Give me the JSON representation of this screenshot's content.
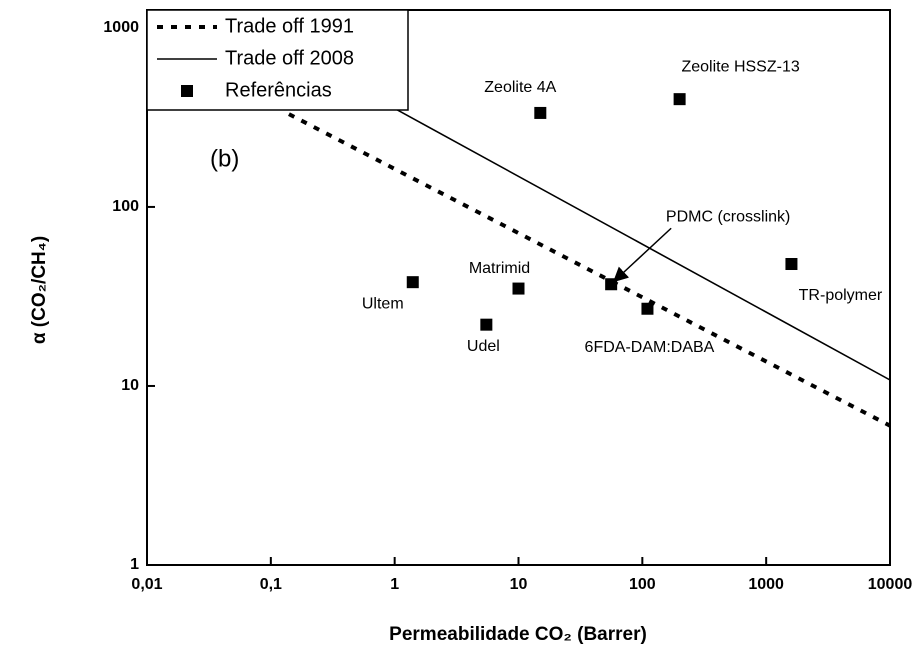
{
  "chart_data": {
    "type": "scatter",
    "xlabel": "Permeabilidade CO₂ (Barrer)",
    "ylabel": "α (CO₂/CH₄)",
    "xscale": "log",
    "yscale": "log",
    "xlim": [
      0.01,
      10000
    ],
    "ylim": [
      1,
      1259
    ],
    "xticks": [
      {
        "value": 0.01,
        "label": "0,01"
      },
      {
        "value": 0.1,
        "label": "0,1"
      },
      1,
      10,
      100,
      1000,
      10000
    ],
    "yticks": [
      1,
      10,
      100,
      1000
    ],
    "legend": "top-left",
    "annotation": "(b)",
    "series": [
      {
        "name": "Trade off 1991",
        "kind": "line",
        "style": "dashed",
        "color": "#000000",
        "x": [
          0.14,
          10000
        ],
        "values": [
          330,
          6
        ]
      },
      {
        "name": "Trade off 2008",
        "kind": "line",
        "style": "solid",
        "color": "#000000",
        "x": [
          0.3,
          10000
        ],
        "values": [
          560,
          10.8
        ]
      },
      {
        "name": "Referências",
        "kind": "points",
        "marker": "square",
        "color": "#000000",
        "x": [
          1.4,
          5.5,
          10,
          15,
          56,
          110,
          200,
          1600
        ],
        "values": [
          38,
          22,
          35,
          335,
          37,
          27,
          400,
          48
        ],
        "labels": [
          "Ultem",
          "Udel",
          "Matrimid",
          "Zeolite 4A",
          "PDMC (crosslink)",
          "6FDA-DAM:DABA",
          "Zeolite HSSZ-13",
          "TR-polymer"
        ]
      }
    ]
  }
}
